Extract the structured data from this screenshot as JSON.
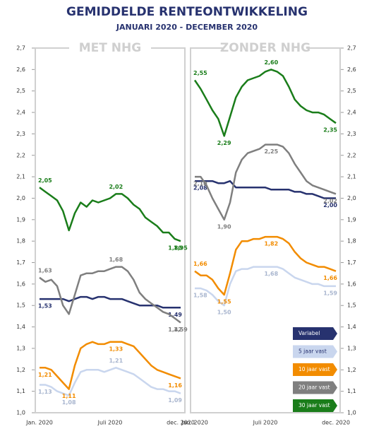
{
  "chart_data": {
    "type": "line",
    "title": "GEMIDDELDE RENTEONTWIKKELING",
    "subtitle": "JANUARI 2020 - DECEMBER 2020",
    "categories": [
      "Jan. 2020",
      null,
      null,
      null,
      null,
      null,
      null,
      null,
      null,
      null,
      null,
      null,
      "Juli 2020",
      null,
      null,
      null,
      null,
      null,
      null,
      null,
      null,
      null,
      null,
      null,
      "dec. 2020"
    ],
    "ylim": [
      1.0,
      2.7
    ],
    "yticks": [
      {
        "value": 1.0,
        "label": "1,0"
      },
      {
        "value": 1.1,
        "label": "1,1"
      },
      {
        "value": 1.2,
        "label": "1,2"
      },
      {
        "value": 1.3,
        "label": "1,3"
      },
      {
        "value": 1.4,
        "label": "1,4"
      },
      {
        "value": 1.5,
        "label": "1,5"
      },
      {
        "value": 1.6,
        "label": "1,6"
      },
      {
        "value": 1.7,
        "label": "1,7"
      },
      {
        "value": 1.8,
        "label": "1,8"
      },
      {
        "value": 1.9,
        "label": "1,9"
      },
      {
        "value": 2.0,
        "label": "2,0"
      },
      {
        "value": 2.1,
        "label": "2,1"
      },
      {
        "value": 2.2,
        "label": "2,2"
      },
      {
        "value": 2.3,
        "label": "2,3"
      },
      {
        "value": 2.4,
        "label": "2,4"
      },
      {
        "value": 2.5,
        "label": "2,5"
      },
      {
        "value": 2.6,
        "label": "2,6"
      },
      {
        "value": 2.7,
        "label": "2,7"
      }
    ],
    "series": [
      {
        "name": "Variabel",
        "color": "#27326f"
      },
      {
        "name": "5 jaar vast",
        "color": "#c9d6ee"
      },
      {
        "name": "10 jaar vast",
        "color": "#f28c00"
      },
      {
        "name": "20 jaar vast",
        "color": "#7f7f7f"
      },
      {
        "name": "30 jaar vast",
        "color": "#1a7d1a"
      }
    ],
    "panels": [
      {
        "title": "MET NHG",
        "series": [
          {
            "values": [
              1.53,
              1.53,
              1.53,
              1.53,
              1.53,
              1.52,
              1.53,
              1.54,
              1.54,
              1.53,
              1.54,
              1.54,
              1.53,
              1.53,
              1.53,
              1.52,
              1.51,
              1.5,
              1.5,
              1.5,
              1.5,
              1.49,
              1.49,
              1.49,
              1.49
            ],
            "value_labels": [
              "1,53",
              null,
              null,
              null,
              null,
              null,
              null,
              null,
              null,
              null,
              null,
              null,
              null,
              null,
              null,
              null,
              null,
              null,
              null,
              null,
              null,
              null,
              null,
              null,
              "1,49"
            ]
          },
          {
            "values": [
              1.13,
              1.13,
              1.12,
              1.1,
              1.09,
              1.08,
              1.14,
              1.19,
              1.2,
              1.2,
              1.2,
              1.19,
              1.2,
              1.21,
              1.2,
              1.19,
              1.18,
              1.16,
              1.14,
              1.12,
              1.11,
              1.11,
              1.1,
              1.1,
              1.09
            ],
            "value_labels": [
              "1,13",
              null,
              null,
              null,
              null,
              "1,08",
              null,
              null,
              null,
              null,
              null,
              null,
              null,
              "1,21",
              null,
              null,
              null,
              null,
              null,
              null,
              null,
              null,
              null,
              null,
              "1,09"
            ]
          },
          {
            "values": [
              1.21,
              1.21,
              1.2,
              1.17,
              1.14,
              1.11,
              1.22,
              1.3,
              1.32,
              1.33,
              1.32,
              1.32,
              1.33,
              1.33,
              1.33,
              1.32,
              1.31,
              1.28,
              1.25,
              1.22,
              1.2,
              1.19,
              1.18,
              1.17,
              1.16
            ],
            "value_labels": [
              "1,21",
              null,
              null,
              null,
              null,
              "1,11",
              null,
              null,
              null,
              null,
              null,
              null,
              null,
              "1,33",
              null,
              null,
              null,
              null,
              null,
              null,
              null,
              null,
              null,
              null,
              "1,16"
            ]
          },
          {
            "values": [
              1.63,
              1.61,
              1.62,
              1.59,
              1.5,
              1.46,
              1.55,
              1.64,
              1.65,
              1.65,
              1.66,
              1.66,
              1.67,
              1.68,
              1.68,
              1.66,
              1.62,
              1.56,
              1.53,
              1.51,
              1.49,
              1.47,
              1.46,
              1.44,
              1.42
            ],
            "value_labels": [
              "1,63",
              null,
              null,
              null,
              null,
              null,
              null,
              null,
              null,
              null,
              null,
              null,
              null,
              "1,68",
              null,
              null,
              null,
              null,
              null,
              null,
              null,
              null,
              null,
              null,
              "1,42"
            ],
            "note": "1,59"
          },
          {
            "values": [
              2.05,
              2.03,
              2.01,
              1.99,
              1.94,
              1.85,
              1.93,
              1.98,
              1.96,
              1.99,
              1.98,
              1.99,
              2.0,
              2.02,
              2.02,
              2.0,
              1.97,
              1.95,
              1.91,
              1.89,
              1.87,
              1.84,
              1.84,
              1.81,
              1.8
            ],
            "value_labels": [
              "2,05",
              null,
              null,
              null,
              null,
              null,
              null,
              null,
              null,
              null,
              null,
              null,
              null,
              "2,02",
              null,
              null,
              null,
              null,
              null,
              null,
              null,
              null,
              null,
              null,
              "1,80"
            ],
            "note": "1,95"
          }
        ]
      },
      {
        "title": "ZONDER NHG",
        "series": [
          {
            "values": [
              2.08,
              2.08,
              2.08,
              2.08,
              2.07,
              2.07,
              2.08,
              2.05,
              2.05,
              2.05,
              2.05,
              2.05,
              2.05,
              2.04,
              2.04,
              2.04,
              2.04,
              2.03,
              2.03,
              2.02,
              2.02,
              2.01,
              2.0,
              2.0,
              2.0
            ],
            "value_labels": [
              "2,08",
              null,
              null,
              null,
              null,
              null,
              null,
              null,
              null,
              null,
              null,
              null,
              null,
              null,
              null,
              null,
              null,
              null,
              null,
              null,
              null,
              null,
              null,
              null,
              "2,00"
            ]
          },
          {
            "values": [
              1.58,
              1.58,
              1.57,
              1.55,
              1.52,
              1.5,
              1.6,
              1.66,
              1.67,
              1.67,
              1.68,
              1.68,
              1.68,
              1.68,
              1.68,
              1.67,
              1.65,
              1.63,
              1.62,
              1.61,
              1.6,
              1.6,
              1.59,
              1.59,
              1.59
            ],
            "value_labels": [
              "1,58",
              null,
              null,
              null,
              null,
              "1,50",
              null,
              null,
              null,
              null,
              null,
              null,
              null,
              "1,68",
              null,
              null,
              null,
              null,
              null,
              null,
              null,
              null,
              null,
              null,
              "1,59"
            ]
          },
          {
            "values": [
              1.66,
              1.64,
              1.64,
              1.62,
              1.58,
              1.55,
              1.65,
              1.76,
              1.8,
              1.8,
              1.81,
              1.81,
              1.82,
              1.82,
              1.82,
              1.81,
              1.79,
              1.75,
              1.72,
              1.7,
              1.69,
              1.68,
              1.68,
              1.67,
              1.66
            ],
            "value_labels": [
              "1,66",
              null,
              null,
              null,
              null,
              "1,55",
              null,
              null,
              null,
              null,
              null,
              null,
              null,
              "1,82",
              null,
              null,
              null,
              null,
              null,
              null,
              null,
              null,
              null,
              null,
              "1,66"
            ]
          },
          {
            "values": [
              2.1,
              2.1,
              2.06,
              2.0,
              1.95,
              1.9,
              1.98,
              2.12,
              2.18,
              2.21,
              2.22,
              2.23,
              2.25,
              2.25,
              2.25,
              2.24,
              2.21,
              2.16,
              2.12,
              2.08,
              2.06,
              2.05,
              2.04,
              2.03,
              2.02
            ],
            "value_labels": [
              "2,10",
              null,
              null,
              null,
              null,
              "1,90",
              null,
              null,
              null,
              null,
              null,
              null,
              null,
              "2,25",
              null,
              null,
              null,
              null,
              null,
              null,
              null,
              null,
              null,
              null,
              "2,02"
            ]
          },
          {
            "values": [
              2.55,
              2.51,
              2.46,
              2.41,
              2.37,
              2.29,
              2.38,
              2.47,
              2.52,
              2.55,
              2.56,
              2.57,
              2.59,
              2.6,
              2.59,
              2.57,
              2.52,
              2.46,
              2.43,
              2.41,
              2.4,
              2.4,
              2.39,
              2.37,
              2.35
            ],
            "value_labels": [
              "2,55",
              null,
              null,
              null,
              null,
              "2,29",
              null,
              null,
              null,
              null,
              null,
              null,
              null,
              "2,60",
              null,
              null,
              null,
              null,
              null,
              null,
              null,
              null,
              null,
              null,
              "2,35"
            ]
          }
        ]
      }
    ]
  }
}
